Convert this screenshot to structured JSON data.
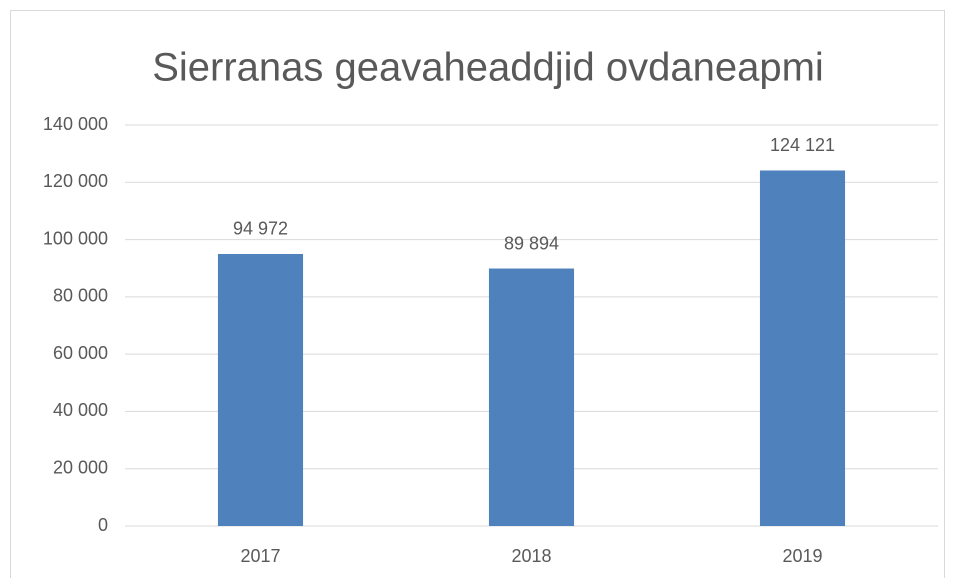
{
  "chart_data": {
    "type": "bar",
    "title": "Sierranas geavaheaddjid ovdaneapmi",
    "categories": [
      "2017",
      "2018",
      "2019"
    ],
    "values": [
      94972,
      89894,
      124121
    ],
    "value_labels": [
      "94 972",
      "89 894",
      "124 121"
    ],
    "color": "#4f81bd",
    "ylim": [
      0,
      140000
    ],
    "yticks": [
      0,
      {
        "value": 20000,
        "label": "20 000"
      },
      {
        "value": 40000,
        "label": "40 000"
      },
      {
        "value": 60000,
        "label": "60 000"
      },
      {
        "value": 80000,
        "label": "80 000"
      },
      {
        "value": 100000,
        "label": "100 000"
      },
      {
        "value": 120000,
        "label": "120 000"
      },
      {
        "value": 140000,
        "label": "140 000"
      }
    ],
    "grid": true
  }
}
